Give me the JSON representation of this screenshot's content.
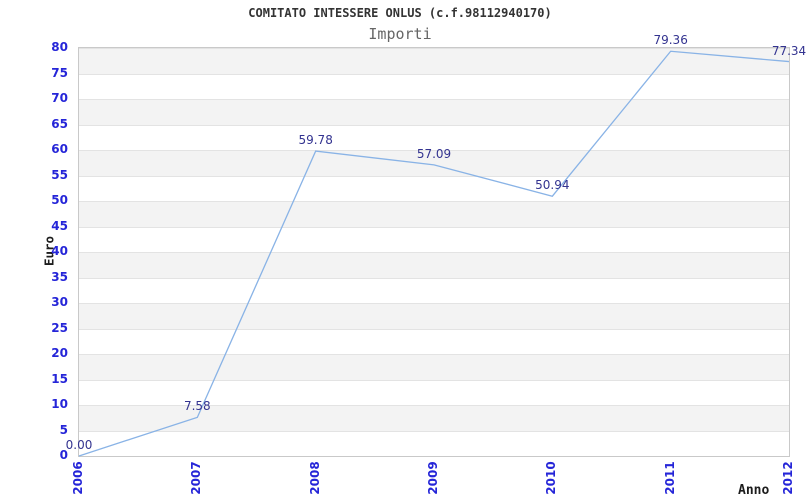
{
  "chart_data": {
    "type": "line",
    "title": "COMITATO INTESSERE ONLUS (c.f.98112940170)",
    "subtitle": "Importi",
    "xlabel": "Anno",
    "ylabel": "Euro",
    "categories": [
      "2006",
      "2007",
      "2008",
      "2009",
      "2010",
      "2011",
      "2012"
    ],
    "values": [
      0.0,
      7.58,
      59.78,
      57.09,
      50.94,
      79.36,
      77.34
    ],
    "point_labels": [
      "0.00",
      "7.58",
      "59.78",
      "57.09",
      "50.94",
      "79.36",
      "77.34"
    ],
    "ylim": [
      0,
      80
    ],
    "ytick_step": 5,
    "yticks": [
      0,
      5,
      10,
      15,
      20,
      25,
      30,
      35,
      40,
      45,
      50,
      55,
      60,
      65,
      70,
      75,
      80
    ],
    "grid": "alternating-horizontal-bands",
    "legend": "none",
    "colors": {
      "line": "#89b3e6",
      "tick_labels": "#2525d8",
      "point_labels": "#333390",
      "title": "#333333",
      "subtitle": "#666666",
      "axis_titles": "#1d1d1d",
      "band_gray": "#f3f3f3",
      "band_white": "#ffffff",
      "plot_border": "#c9c9c9"
    }
  }
}
